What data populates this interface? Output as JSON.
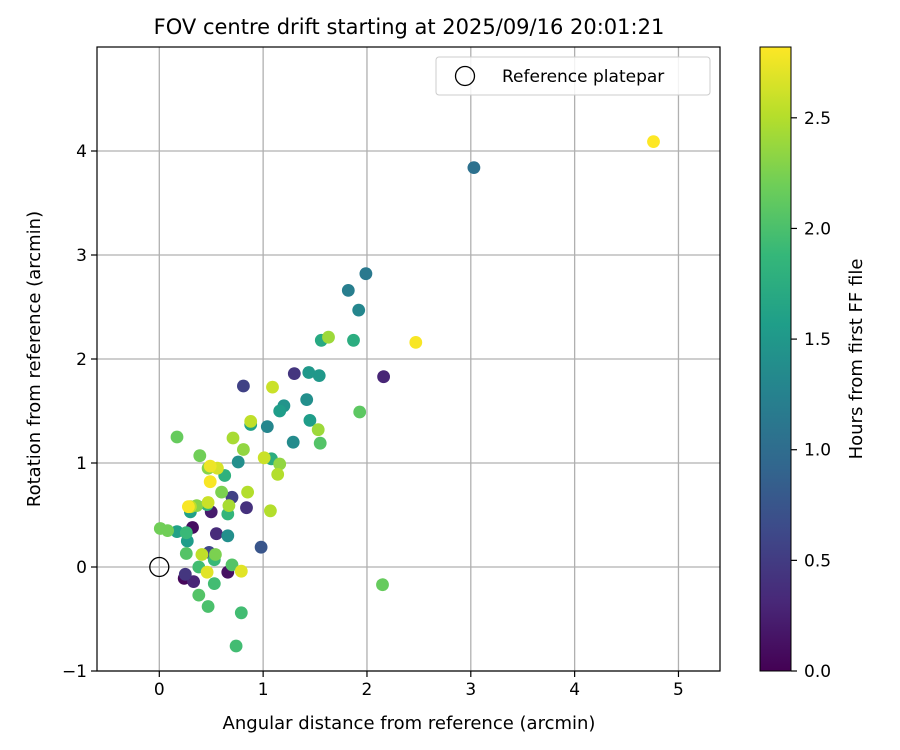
{
  "chart_data": {
    "type": "scatter",
    "title": "FOV centre drift starting at 2025/09/16 20:01:21",
    "xlabel": "Angular distance from reference (arcmin)",
    "ylabel": "Rotation from reference (arcmin)",
    "xlim": [
      -0.6,
      5.4
    ],
    "ylim": [
      -1,
      5.0
    ],
    "xticks": [
      0,
      1,
      2,
      3,
      4,
      5
    ],
    "yticks": [
      -1,
      0,
      1,
      2,
      3,
      4
    ],
    "grid": true,
    "legend": {
      "position": "top-right",
      "entries": [
        "Reference platepar"
      ]
    },
    "reference_point": {
      "x": 0,
      "y": 0,
      "label": "Reference platepar"
    },
    "colorbar": {
      "label": "Hours from first FF file",
      "colormap": "viridis",
      "range": [
        0.0,
        2.82
      ],
      "ticks": [
        0.0,
        0.5,
        1.0,
        1.5,
        2.0,
        2.5
      ],
      "stops": [
        "#440154",
        "#482878",
        "#3e4989",
        "#31688e",
        "#26828e",
        "#1f9e89",
        "#35b779",
        "#6ece58",
        "#b5de2b",
        "#fde725"
      ]
    },
    "points": [
      {
        "x": 0.24,
        "y": -0.11,
        "t": 0.05
      },
      {
        "x": 0.32,
        "y": 0.38,
        "t": 0.1
      },
      {
        "x": 0.66,
        "y": -0.05,
        "t": 0.12
      },
      {
        "x": 0.5,
        "y": 0.53,
        "t": 0.22
      },
      {
        "x": 0.33,
        "y": -0.14,
        "t": 0.3
      },
      {
        "x": 0.55,
        "y": 0.32,
        "t": 0.35
      },
      {
        "x": 2.16,
        "y": 1.83,
        "t": 0.3
      },
      {
        "x": 0.84,
        "y": 0.57,
        "t": 0.4
      },
      {
        "x": 0.25,
        "y": -0.07,
        "t": 0.45
      },
      {
        "x": 1.3,
        "y": 1.86,
        "t": 0.45
      },
      {
        "x": 0.81,
        "y": 1.74,
        "t": 0.55
      },
      {
        "x": 0.7,
        "y": 0.67,
        "t": 0.55
      },
      {
        "x": 0.48,
        "y": 0.14,
        "t": 0.6
      },
      {
        "x": 0.98,
        "y": 0.19,
        "t": 0.75
      },
      {
        "x": 3.03,
        "y": 3.84,
        "t": 1.05
      },
      {
        "x": 1.99,
        "y": 2.82,
        "t": 1.15
      },
      {
        "x": 1.82,
        "y": 2.66,
        "t": 1.2
      },
      {
        "x": 1.92,
        "y": 2.47,
        "t": 1.3
      },
      {
        "x": 1.04,
        "y": 1.35,
        "t": 1.3
      },
      {
        "x": 1.29,
        "y": 1.2,
        "t": 1.35
      },
      {
        "x": 0.76,
        "y": 1.01,
        "t": 1.4
      },
      {
        "x": 0.66,
        "y": 0.3,
        "t": 1.4
      },
      {
        "x": 1.42,
        "y": 1.61,
        "t": 1.4
      },
      {
        "x": 1.2,
        "y": 1.55,
        "t": 1.45
      },
      {
        "x": 1.44,
        "y": 1.87,
        "t": 1.5
      },
      {
        "x": 1.54,
        "y": 1.84,
        "t": 1.5
      },
      {
        "x": 1.16,
        "y": 1.5,
        "t": 1.55
      },
      {
        "x": 1.45,
        "y": 1.41,
        "t": 1.55
      },
      {
        "x": 0.27,
        "y": 0.25,
        "t": 1.55
      },
      {
        "x": 0.17,
        "y": 0.34,
        "t": 1.6
      },
      {
        "x": 0.3,
        "y": 0.53,
        "t": 1.6
      },
      {
        "x": 0.88,
        "y": 1.37,
        "t": 1.6
      },
      {
        "x": 1.56,
        "y": 2.18,
        "t": 1.7
      },
      {
        "x": 1.87,
        "y": 2.18,
        "t": 1.75
      },
      {
        "x": 1.08,
        "y": 1.04,
        "t": 1.75
      },
      {
        "x": 0.63,
        "y": 0.88,
        "t": 1.8
      },
      {
        "x": 0.66,
        "y": 0.51,
        "t": 1.85
      },
      {
        "x": 0.46,
        "y": 0.6,
        "t": 1.85
      },
      {
        "x": 0.26,
        "y": 0.33,
        "t": 1.9
      },
      {
        "x": 0.53,
        "y": 0.07,
        "t": 1.9
      },
      {
        "x": 0.38,
        "y": 0.0,
        "t": 1.95
      },
      {
        "x": 0.53,
        "y": -0.16,
        "t": 1.95
      },
      {
        "x": 0.79,
        "y": -0.44,
        "t": 1.95
      },
      {
        "x": 0.74,
        "y": -0.76,
        "t": 1.95
      },
      {
        "x": 0.47,
        "y": -0.38,
        "t": 2.0
      },
      {
        "x": 0.38,
        "y": -0.27,
        "t": 2.05
      },
      {
        "x": 0.26,
        "y": 0.13,
        "t": 2.05
      },
      {
        "x": 0.7,
        "y": 0.02,
        "t": 2.05
      },
      {
        "x": 1.55,
        "y": 1.19,
        "t": 2.05
      },
      {
        "x": 1.93,
        "y": 1.49,
        "t": 2.1
      },
      {
        "x": 2.15,
        "y": -0.17,
        "t": 2.15
      },
      {
        "x": 0.17,
        "y": 1.25,
        "t": 2.15
      },
      {
        "x": 0.01,
        "y": 0.37,
        "t": 2.2
      },
      {
        "x": 0.08,
        "y": 0.35,
        "t": 2.2
      },
      {
        "x": 0.39,
        "y": 1.07,
        "t": 2.2
      },
      {
        "x": 0.54,
        "y": 0.12,
        "t": 2.25
      },
      {
        "x": 0.6,
        "y": 0.72,
        "t": 2.25
      },
      {
        "x": 0.36,
        "y": 0.59,
        "t": 2.3
      },
      {
        "x": 0.47,
        "y": 0.95,
        "t": 2.3
      },
      {
        "x": 0.81,
        "y": 1.13,
        "t": 2.35
      },
      {
        "x": 1.16,
        "y": 0.99,
        "t": 2.35
      },
      {
        "x": 1.63,
        "y": 2.21,
        "t": 2.4
      },
      {
        "x": 1.53,
        "y": 1.32,
        "t": 2.4
      },
      {
        "x": 0.71,
        "y": 1.24,
        "t": 2.45
      },
      {
        "x": 0.67,
        "y": 0.59,
        "t": 2.45
      },
      {
        "x": 0.85,
        "y": 0.72,
        "t": 2.5
      },
      {
        "x": 1.07,
        "y": 0.54,
        "t": 2.5
      },
      {
        "x": 1.14,
        "y": 0.89,
        "t": 2.5
      },
      {
        "x": 0.3,
        "y": 0.58,
        "t": 2.55
      },
      {
        "x": 0.88,
        "y": 1.4,
        "t": 2.55
      },
      {
        "x": 0.41,
        "y": 0.12,
        "t": 2.55
      },
      {
        "x": 1.01,
        "y": 1.05,
        "t": 2.6
      },
      {
        "x": 1.09,
        "y": 1.73,
        "t": 2.6
      },
      {
        "x": 0.47,
        "y": 0.62,
        "t": 2.6
      },
      {
        "x": 0.56,
        "y": 0.95,
        "t": 2.65
      },
      {
        "x": 0.46,
        "y": -0.05,
        "t": 2.7
      },
      {
        "x": 0.79,
        "y": -0.04,
        "t": 2.7
      },
      {
        "x": 0.49,
        "y": 0.97,
        "t": 2.75
      },
      {
        "x": 0.49,
        "y": 0.82,
        "t": 2.8
      },
      {
        "x": 0.28,
        "y": 0.58,
        "t": 2.8
      },
      {
        "x": 2.47,
        "y": 2.16,
        "t": 2.8
      },
      {
        "x": 4.76,
        "y": 4.09,
        "t": 2.82
      }
    ]
  }
}
